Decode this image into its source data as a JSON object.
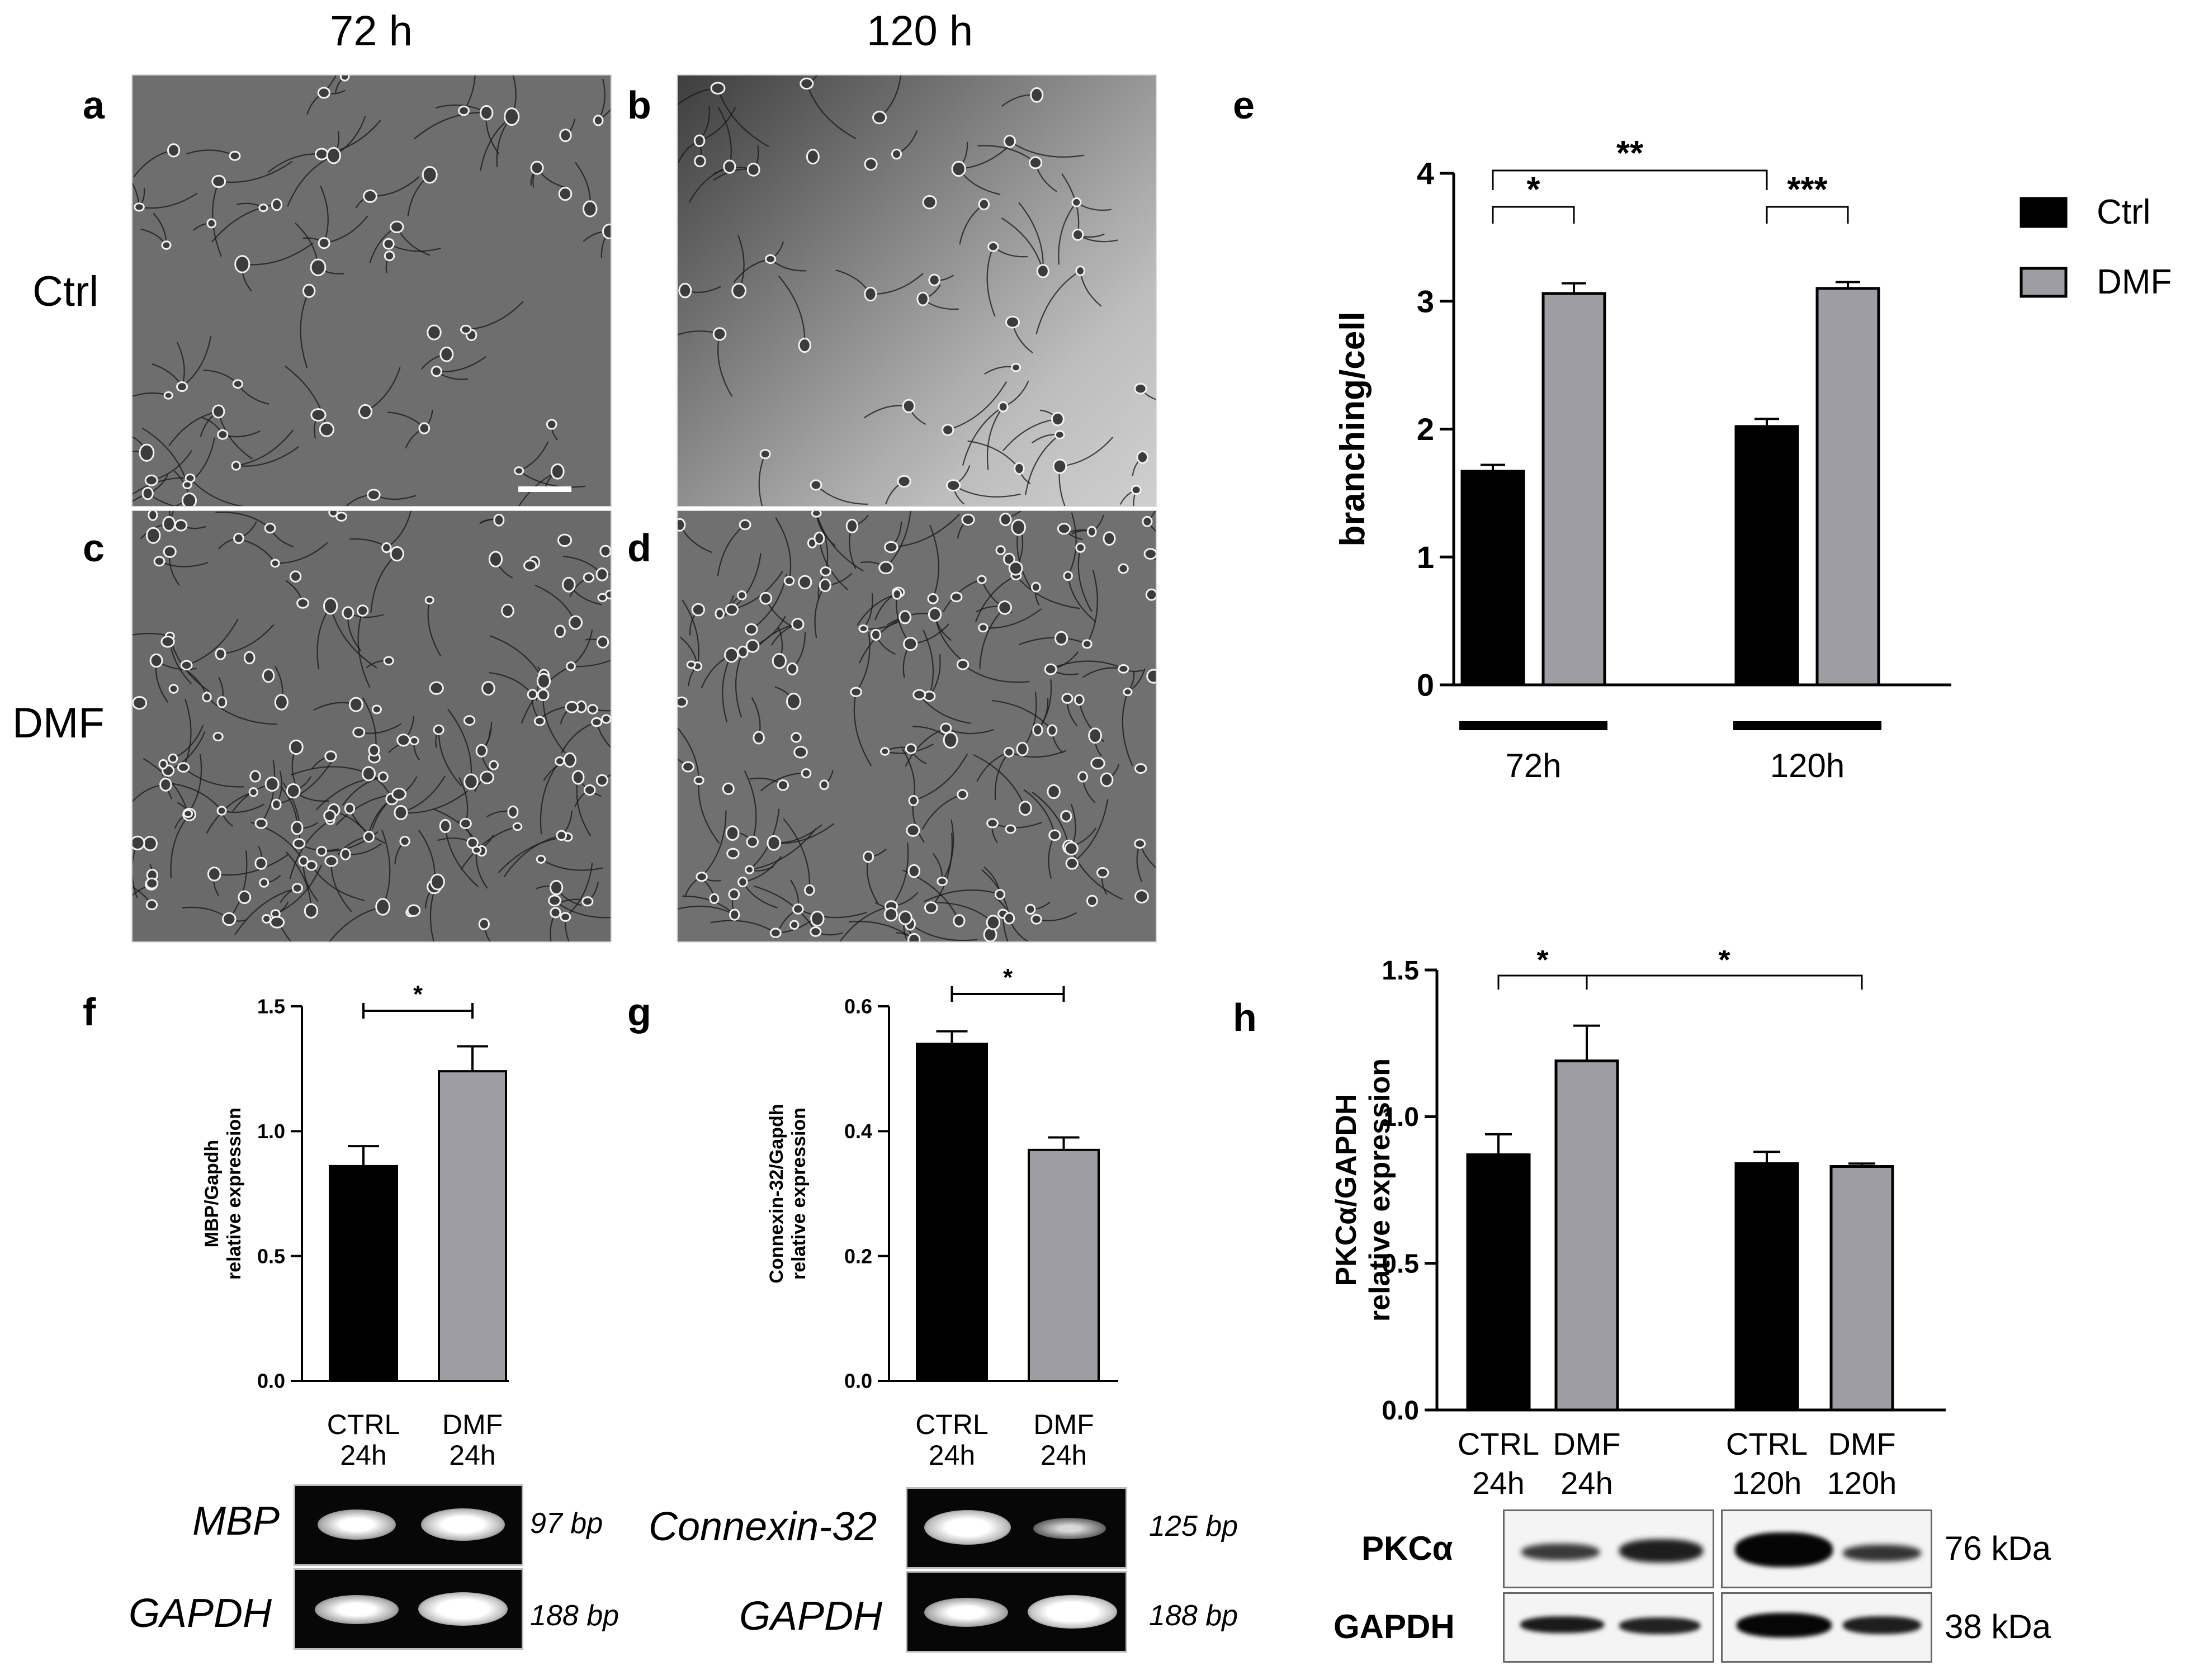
{
  "columns": {
    "c72": "72 h",
    "c120": "120 h"
  },
  "rows": {
    "ctrl": "Ctrl",
    "dmf": "DMF"
  },
  "panel_letters": {
    "a": "a",
    "b": "b",
    "c": "c",
    "d": "d",
    "e": "e",
    "f": "f",
    "g": "g",
    "h": "h"
  },
  "colors": {
    "ctrl": "#000000",
    "dmf": "#9d9da3"
  },
  "chart_data": [
    {
      "panel": "e",
      "type": "bar",
      "categories": [
        "72h",
        "120h"
      ],
      "ylabel": "branching/cell",
      "ylim": [
        0,
        4
      ],
      "yticks": [
        "0",
        "1",
        "2",
        "3",
        "4"
      ],
      "series": [
        {
          "name": "Ctrl",
          "values": [
            1.67,
            2.02
          ],
          "errors": [
            0.05,
            0.06
          ]
        },
        {
          "name": "DMF",
          "values": [
            3.06,
            3.1
          ],
          "errors": [
            0.08,
            0.05
          ]
        }
      ],
      "significance": [
        "*",
        "***",
        "**"
      ],
      "legend": "top-right"
    },
    {
      "panel": "f",
      "type": "bar",
      "categories": [
        "CTRL\n24h",
        "DMF\n24h"
      ],
      "cat_lines": [
        [
          "CTRL",
          "24h"
        ],
        [
          "DMF",
          "24h"
        ]
      ],
      "ylabel_lines": [
        "MBP/Gapdh",
        "relative expression"
      ],
      "ylim": [
        0,
        1.5
      ],
      "yticks": [
        "0.0",
        "0.5",
        "1.0",
        "1.5"
      ],
      "values": [
        0.86,
        1.24
      ],
      "errors": [
        0.08,
        0.1
      ],
      "significance": [
        "*"
      ]
    },
    {
      "panel": "g",
      "type": "bar",
      "categories": [
        "CTRL\n24h",
        "DMF\n24h"
      ],
      "cat_lines": [
        [
          "CTRL",
          "24h"
        ],
        [
          "DMF",
          "24h"
        ]
      ],
      "ylabel_lines": [
        "Connexin-32/Gapdh",
        "relative expression"
      ],
      "ylim": [
        0,
        0.6
      ],
      "yticks": [
        "0.0",
        "0.2",
        "0.4",
        "0.6"
      ],
      "values": [
        0.54,
        0.37
      ],
      "errors": [
        0.02,
        0.02
      ],
      "significance": [
        "*"
      ]
    },
    {
      "panel": "h",
      "type": "bar",
      "categories": [
        "CTRL\n24h",
        "DMF\n24h",
        "CTRL\n120h",
        "DMF\n120h"
      ],
      "cat_lines": [
        [
          "CTRL",
          "24h"
        ],
        [
          "DMF",
          "24h"
        ],
        [
          "CTRL",
          "120h"
        ],
        [
          "DMF",
          "120h"
        ]
      ],
      "ylabel_lines": [
        "PKCα/GAPDH",
        "relative expression"
      ],
      "ylim": [
        0,
        1.5
      ],
      "yticks": [
        "0.0",
        "0.5",
        "1.0",
        "1.5"
      ],
      "values": [
        0.87,
        1.19,
        0.84,
        0.83
      ],
      "errors": [
        0.07,
        0.12,
        0.04,
        0.01
      ],
      "significance": [
        "*",
        "*"
      ]
    }
  ],
  "gels": {
    "f": {
      "top_label": "MBP",
      "bottom_label": "GAPDH",
      "top_bp": "97 bp",
      "bottom_bp": "188 bp"
    },
    "g": {
      "top_label": "Connexin-32",
      "bottom_label": "GAPDH",
      "top_bp": "125 bp",
      "bottom_bp": "188 bp"
    }
  },
  "western": {
    "top_label": "PKCα",
    "bottom_label": "GAPDH",
    "top_kda": "76 kDa",
    "bottom_kda": "38 kDa"
  }
}
